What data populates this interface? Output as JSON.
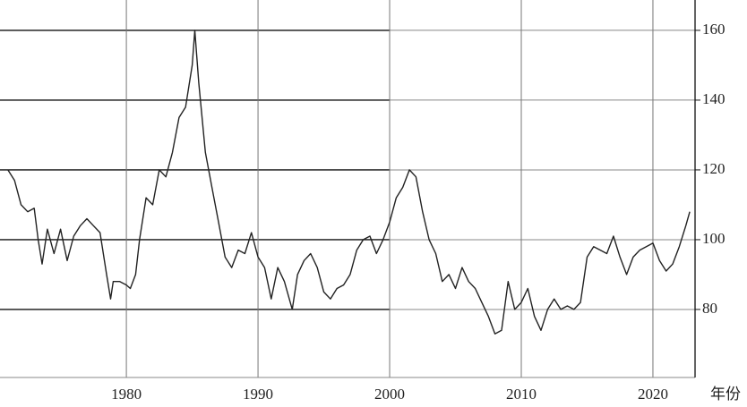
{
  "chart_data": {
    "type": "line",
    "x_label": "年份",
    "x": [
      1971.0,
      1971.5,
      1972,
      1972.5,
      1973,
      1973.3,
      1973.6,
      1974,
      1974.5,
      1975,
      1975.5,
      1976,
      1976.5,
      1977,
      1977.5,
      1978,
      1978.5,
      1978.8,
      1979,
      1979.5,
      1980,
      1980.3,
      1980.7,
      1981,
      1981.5,
      1982,
      1982.5,
      1983,
      1983.5,
      1984,
      1984.5,
      1985.0,
      1985.2,
      1985.5,
      1986,
      1986.5,
      1987,
      1987.5,
      1988,
      1988.5,
      1989,
      1989.5,
      1990,
      1990.5,
      1991,
      1991.5,
      1992,
      1992.6,
      1993,
      1993.5,
      1994,
      1994.5,
      1995,
      1995.5,
      1996,
      1996.5,
      1997,
      1997.5,
      1998,
      1998.5,
      1999,
      1999.5,
      2000,
      2000.5,
      2001,
      2001.5,
      2002,
      2002.5,
      2003,
      2003.5,
      2004,
      2004.5,
      2005,
      2005.5,
      2006,
      2006.5,
      2007,
      2007.5,
      2008,
      2008.5,
      2009,
      2009.5,
      2010,
      2010.5,
      2011,
      2011.5,
      2012,
      2012.5,
      2013,
      2013.5,
      2014,
      2014.5,
      2015,
      2015.5,
      2016,
      2016.5,
      2017,
      2017.5,
      2018,
      2018.5,
      2019,
      2019.5,
      2020,
      2020.5,
      2021,
      2021.5,
      2022,
      2022.5,
      2022.8
    ],
    "series": [
      {
        "color": "#222222",
        "values": [
          120,
          117,
          110,
          108,
          109,
          100,
          93,
          103,
          96,
          103,
          94,
          101,
          104,
          106,
          104,
          102,
          90,
          83,
          88,
          88,
          87,
          86,
          90,
          100,
          112,
          110,
          120,
          118,
          125,
          135,
          138,
          150,
          160,
          145,
          125,
          115,
          105,
          95,
          92,
          97,
          96,
          102,
          95,
          92,
          83,
          92,
          88,
          80,
          90,
          94,
          96,
          92,
          85,
          83,
          86,
          87,
          90,
          97,
          100,
          101,
          96,
          100,
          105,
          112,
          115,
          120,
          118,
          108,
          100,
          96,
          88,
          90,
          86,
          92,
          88,
          86,
          82,
          78,
          73,
          74,
          88,
          80,
          82,
          86,
          78,
          74,
          80,
          83,
          80,
          81,
          80,
          82,
          95,
          98,
          97,
          96,
          101,
          95,
          90,
          95,
          97,
          98,
          99,
          94,
          91,
          93,
          98,
          104,
          108
        ]
      }
    ],
    "xlim": [
      1970.4,
      2023.2
    ],
    "xticks": [
      1980,
      1990,
      2000,
      2010,
      2020
    ],
    "ylim": [
      60.5,
      168.7
    ],
    "yticks": [
      80,
      100,
      120,
      140,
      160
    ],
    "grid": true
  }
}
